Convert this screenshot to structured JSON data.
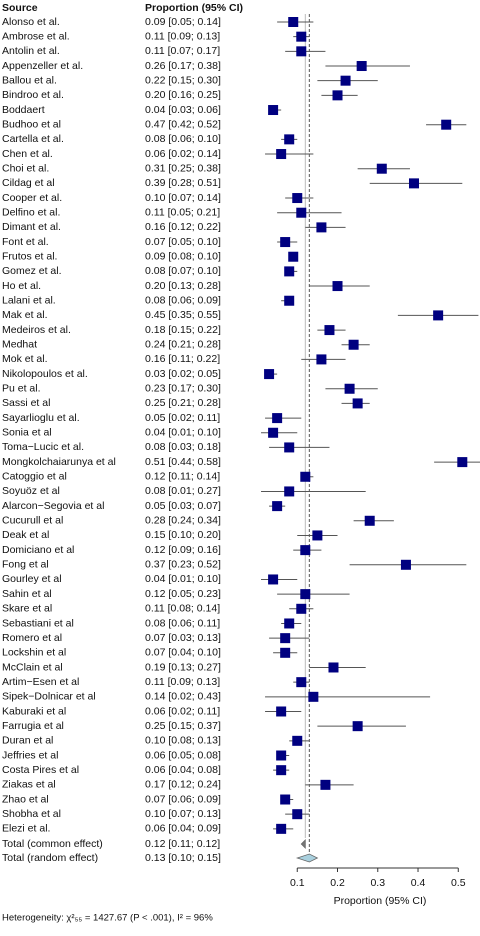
{
  "chart_data": {
    "type": "forest",
    "column_headers": [
      "Source",
      "Proportion (95% CI)"
    ],
    "xlabel": "Proportion (95% CI)",
    "footnote": "Heterogeneity: χ²₅₅ = 1427.67 (P < .001), I² = 96%",
    "xlim": [
      0,
      0.55
    ],
    "xticks": [
      0.1,
      0.2,
      0.3,
      0.4,
      0.5
    ],
    "color": "#000080",
    "studies": [
      "Alonso et al.",
      "Ambrose et al.",
      "Antolin et al.",
      "Appenzeller et al.",
      "Ballou et al.",
      "Bindroo et al.",
      "Boddaert",
      "Budhoo et al",
      "Cartella et al.",
      "Chen et al.",
      "Choi et al.",
      "Cildag et al",
      "Cooper et al.",
      "Delfino et al.",
      "Dimant et al.",
      "Font et al.",
      "Frutos et al.",
      "Gomez et al.",
      "Ho et al.",
      "Lalani et al.",
      "Mak et al.",
      "Medeiros et al.",
      "Medhat",
      "Mok et al.",
      "Nikolopoulos et al.",
      "Pu et al.",
      "Sassi et al",
      "Sayarlioglu et al.",
      "Sonia et al",
      "Toma−Lucic et al.",
      "Mongkolchaiarunya  et al",
      "Catoggio et al",
      "Soyuöz et al",
      "Alarcon−Segovia et al",
      "Cucurull et al",
      "Deak et al",
      "Domiciano et al",
      "Fong et al",
      "Gourley et al",
      "Sahin et al",
      "Skare et al",
      "Sebastiani et al",
      "Romero et al",
      "Lockshin et al",
      "McClain et al",
      "Artim−Esen et al",
      "Sipek−Dolnicar et al",
      "Kaburaki et al",
      "Farrugia et al",
      "Duran et al",
      "Jeffries et al",
      "Costa Pires et al",
      "Ziakas et al",
      "Zhao et al",
      "Shobha et al",
      "Elezi et al."
    ],
    "values": [
      0.09,
      0.11,
      0.11,
      0.26,
      0.22,
      0.2,
      0.04,
      0.47,
      0.08,
      0.06,
      0.31,
      0.39,
      0.1,
      0.11,
      0.16,
      0.07,
      0.09,
      0.08,
      0.2,
      0.08,
      0.45,
      0.18,
      0.24,
      0.16,
      0.03,
      0.23,
      0.25,
      0.05,
      0.04,
      0.08,
      0.51,
      0.12,
      0.08,
      0.05,
      0.28,
      0.15,
      0.12,
      0.37,
      0.04,
      0.12,
      0.11,
      0.08,
      0.07,
      0.07,
      0.19,
      0.11,
      0.14,
      0.06,
      0.25,
      0.1,
      0.06,
      0.06,
      0.17,
      0.07,
      0.1,
      0.06
    ],
    "lower": [
      0.05,
      0.09,
      0.07,
      0.17,
      0.15,
      0.16,
      0.03,
      0.42,
      0.06,
      0.02,
      0.25,
      0.28,
      0.07,
      0.05,
      0.12,
      0.05,
      0.08,
      0.07,
      0.13,
      0.06,
      0.35,
      0.15,
      0.21,
      0.11,
      0.02,
      0.17,
      0.21,
      0.02,
      0.01,
      0.03,
      0.44,
      0.11,
      0.01,
      0.03,
      0.24,
      0.1,
      0.09,
      0.23,
      0.01,
      0.05,
      0.08,
      0.06,
      0.03,
      0.04,
      0.13,
      0.09,
      0.02,
      0.02,
      0.15,
      0.08,
      0.05,
      0.04,
      0.12,
      0.06,
      0.07,
      0.04
    ],
    "upper": [
      0.14,
      0.13,
      0.17,
      0.38,
      0.3,
      0.25,
      0.06,
      0.52,
      0.1,
      0.14,
      0.38,
      0.51,
      0.14,
      0.21,
      0.22,
      0.1,
      0.1,
      0.1,
      0.28,
      0.09,
      0.55,
      0.22,
      0.28,
      0.22,
      0.05,
      0.3,
      0.28,
      0.11,
      0.1,
      0.18,
      0.58,
      0.14,
      0.27,
      0.07,
      0.34,
      0.2,
      0.16,
      0.52,
      0.1,
      0.23,
      0.14,
      0.11,
      0.13,
      0.1,
      0.27,
      0.13,
      0.43,
      0.11,
      0.37,
      0.13,
      0.08,
      0.08,
      0.24,
      0.09,
      0.13,
      0.09
    ],
    "value_labels": [
      "0.09 [0.05; 0.14]",
      "0.11 [0.09; 0.13]",
      "0.11 [0.07; 0.17]",
      "0.26 [0.17; 0.38]",
      "0.22 [0.15; 0.30]",
      "0.20 [0.16; 0.25]",
      "0.04 [0.03; 0.06]",
      "0.47 [0.42; 0.52]",
      "0.08 [0.06; 0.10]",
      "0.06 [0.02; 0.14]",
      "0.31 [0.25; 0.38]",
      "0.39 [0.28; 0.51]",
      "0.10 [0.07; 0.14]",
      "0.11 [0.05; 0.21]",
      "0.16 [0.12; 0.22]",
      "0.07 [0.05; 0.10]",
      "0.09 [0.08; 0.10]",
      "0.08 [0.07; 0.10]",
      "0.20 [0.13; 0.28]",
      "0.08 [0.06; 0.09]",
      "0.45 [0.35; 0.55]",
      "0.18 [0.15; 0.22]",
      "0.24 [0.21; 0.28]",
      "0.16 [0.11; 0.22]",
      "0.03 [0.02; 0.05]",
      "0.23 [0.17; 0.30]",
      "0.25 [0.21; 0.28]",
      "0.05 [0.02; 0.11]",
      "0.04 [0.01; 0.10]",
      "0.08 [0.03; 0.18]",
      "0.51 [0.44; 0.58]",
      "0.12 [0.11; 0.14]",
      "0.08 [0.01; 0.27]",
      "0.05 [0.03; 0.07]",
      "0.28 [0.24; 0.34]",
      "0.15 [0.10; 0.20]",
      "0.12 [0.09; 0.16]",
      "0.37 [0.23; 0.52]",
      "0.04 [0.01; 0.10]",
      "0.12 [0.05; 0.23]",
      "0.11 [0.08; 0.14]",
      "0.08 [0.06; 0.11]",
      "0.07 [0.03; 0.13]",
      "0.07 [0.04; 0.10]",
      "0.19 [0.13; 0.27]",
      "0.11 [0.09; 0.13]",
      "0.14 [0.02; 0.43]",
      "0.06 [0.02; 0.11]",
      "0.25 [0.15; 0.37]",
      "0.10 [0.08; 0.13]",
      "0.06 [0.05; 0.08]",
      "0.06 [0.04; 0.08]",
      "0.17 [0.12; 0.24]",
      "0.07 [0.06; 0.09]",
      "0.10 [0.07; 0.13]",
      "0.06 [0.04; 0.09]"
    ],
    "summary": {
      "names": [
        "Total (common effect)",
        "Total (random effect)"
      ],
      "values": [
        0.12,
        0.13
      ],
      "lower": [
        0.11,
        0.1
      ],
      "upper": [
        0.12,
        0.15
      ],
      "value_labels": [
        "0.12 [0.11; 0.12]",
        "0.13 [0.10; 0.15]"
      ],
      "colors": [
        "#777777",
        "#a9d0de"
      ]
    }
  }
}
